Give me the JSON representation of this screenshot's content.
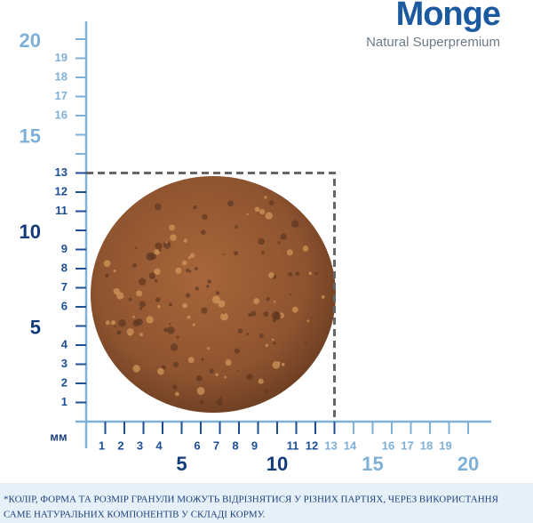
{
  "logo": {
    "brand": "Monge",
    "tagline": "Natural Superpremium"
  },
  "ruler": {
    "unit": "мм",
    "vertical": {
      "minor": [
        1,
        2,
        3,
        4,
        6,
        7,
        8,
        9,
        11,
        12,
        13,
        16,
        17,
        18,
        19
      ],
      "major": [
        5,
        10,
        15,
        20
      ]
    },
    "horizontal": {
      "minor": [
        1,
        2,
        3,
        4,
        6,
        7,
        8,
        9,
        11,
        12,
        13,
        14,
        16,
        17,
        18,
        19
      ],
      "major": [
        5,
        10,
        15,
        20
      ]
    },
    "granule_box": 13
  },
  "footnote": {
    "lines": [
      "*КОЛІР, ФОРМА ТА РОЗМІР ГРАНУЛИ МОЖУТЬ ВІДРІЗНЯТИСЯ У РІЗНИХ ПАРТІЯХ, ЧЕРЕЗ ВИКОРИСТАННЯ",
      "САМЕ НАТУРАЛЬНИХ КОМПОНЕНТІВ У СКЛАДІ КОРМУ."
    ]
  }
}
